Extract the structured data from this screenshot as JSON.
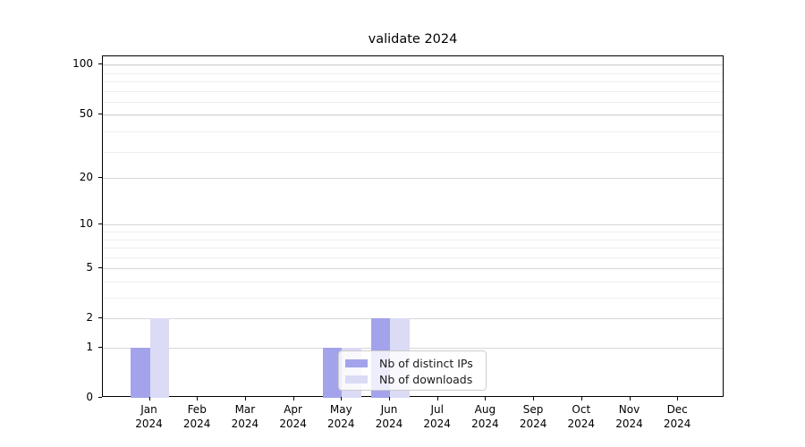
{
  "chart_data": {
    "type": "bar",
    "title": "validate 2024",
    "categories": [
      "Jan",
      "Feb",
      "Mar",
      "Apr",
      "May",
      "Jun",
      "Jul",
      "Aug",
      "Sep",
      "Oct",
      "Nov",
      "Dec"
    ],
    "year_label": "2024",
    "series": [
      {
        "name": "Nb of distinct IPs",
        "color": "#a3a3ec",
        "values": [
          1,
          0,
          0,
          0,
          1,
          2,
          0,
          0,
          0,
          0,
          0,
          0
        ]
      },
      {
        "name": "Nb of downloads",
        "color": "#dbdbf6",
        "values": [
          2,
          0,
          0,
          0,
          1,
          2,
          0,
          0,
          0,
          0,
          0,
          0
        ]
      }
    ],
    "yscale": "log1p",
    "ytick_values": [
      0,
      1,
      2,
      5,
      10,
      20,
      50,
      100
    ],
    "ytick_labels": [
      "0",
      "1",
      "2",
      "5",
      "10",
      "20",
      "50",
      "100"
    ],
    "minor_ytick_values": [
      3,
      4,
      6,
      7,
      8,
      9,
      29,
      39,
      49,
      59,
      69,
      79,
      89,
      99
    ],
    "ylim": [
      0,
      101
    ],
    "grid": "horizontal-major-and-minor",
    "legend_position": "lower center, inside axes, over May/Jun bars"
  },
  "colors": {
    "background": "#ffffff",
    "axis": "#000000",
    "grid_major": "#d7d7d7",
    "grid_minor": "#eeeeee",
    "legend_border": "#cccccc",
    "legend_background": "rgba(255,255,255,0.8)",
    "text": "#000000"
  }
}
